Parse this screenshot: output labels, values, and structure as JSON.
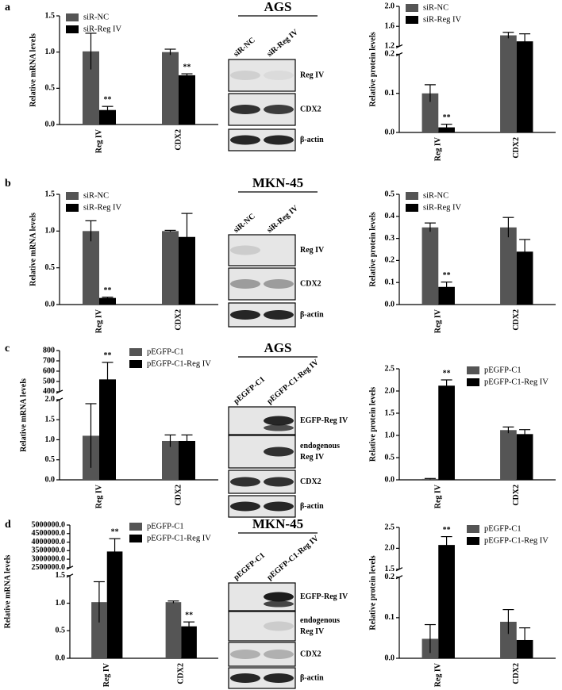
{
  "panels": [
    "a",
    "b",
    "c",
    "d"
  ],
  "blots": [
    {
      "cell_line": "AGS",
      "lanes": [
        "siR-NC",
        "siR-Reg IV"
      ],
      "bands": [
        "Reg IV",
        "CDX2",
        "β-actin"
      ]
    },
    {
      "cell_line": "MKN-45",
      "lanes": [
        "siR-NC",
        "siR-Reg IV"
      ],
      "bands": [
        "Reg IV",
        "CDX2",
        "β-actin"
      ]
    },
    {
      "cell_line": "AGS",
      "lanes": [
        "pEGFP-C1",
        "pEGFP-C1-Reg IV"
      ],
      "bands": [
        "EGFP-Reg IV",
        [
          "endogenous",
          "Reg IV"
        ],
        "CDX2",
        "β-actin"
      ]
    },
    {
      "cell_line": "MKN-45",
      "lanes": [
        "pEGFP-C1",
        "pEGFP-C1-Reg IV"
      ],
      "bands": [
        "EGFP-Reg IV",
        [
          "endogenous",
          "Reg IV"
        ],
        "CDX2",
        "β-actin"
      ]
    }
  ],
  "chart_data": [
    {
      "type": "bar",
      "ylabel": "Relative mRNA levels",
      "categories": [
        "Reg IV",
        "CDX2"
      ],
      "legend": "upper left",
      "series": [
        {
          "name": "siR-NC",
          "color": "#555555",
          "values": [
            1.01,
            1.0
          ],
          "errors": [
            0.25,
            0.04
          ],
          "labels": [
            null,
            null
          ]
        },
        {
          "name": "siR-Reg IV",
          "color": "#000000",
          "values": [
            0.2,
            0.68
          ],
          "errors": [
            0.05,
            0.02
          ],
          "labels": [
            "**",
            "**"
          ]
        }
      ],
      "segments": [
        {
          "ylim": [
            0,
            1.5
          ],
          "yticks": [
            {
              "value": 0,
              "label": "0.0"
            },
            0.5,
            {
              "value": 1,
              "label": "1.0"
            },
            1.5
          ]
        }
      ]
    },
    {
      "type": "bar",
      "ylabel": "Relative protein levels",
      "categories": [
        "Reg IV",
        "CDX2"
      ],
      "legend": "upper left",
      "series": [
        {
          "name": "siR-NC",
          "color": "#555555",
          "values": [
            0.1,
            1.42
          ],
          "errors": [
            0.022,
            0.06
          ],
          "labels": [
            null,
            null
          ]
        },
        {
          "name": "siR-Reg IV",
          "color": "#000000",
          "values": [
            0.013,
            1.3
          ],
          "errors": [
            0.008,
            0.15
          ],
          "labels": [
            "**",
            null
          ]
        }
      ],
      "segments": [
        {
          "ylim": [
            0,
            0.2
          ],
          "yticks": [
            {
              "value": 0,
              "label": "0.0"
            },
            0.1,
            0.2
          ]
        },
        {
          "ylim": [
            1.2,
            2.0
          ],
          "yticks": [
            1.2,
            1.6,
            {
              "value": 2,
              "label": "2.0"
            }
          ]
        }
      ]
    },
    {
      "type": "bar",
      "ylabel": "Relative mRNA levels",
      "categories": [
        "Reg IV",
        "CDX2"
      ],
      "legend": "upper left",
      "series": [
        {
          "name": "siR-NC",
          "color": "#555555",
          "values": [
            1.0,
            1.0
          ],
          "errors": [
            0.14,
            0.01
          ],
          "labels": [
            null,
            null
          ]
        },
        {
          "name": "siR-Reg IV",
          "color": "#000000",
          "values": [
            0.09,
            0.92
          ],
          "errors": [
            0.01,
            0.32
          ],
          "labels": [
            "**",
            null
          ]
        }
      ],
      "segments": [
        {
          "ylim": [
            0,
            1.5
          ],
          "yticks": [
            {
              "value": 0,
              "label": "0.0"
            },
            0.5,
            {
              "value": 1,
              "label": "1.0"
            },
            1.5
          ]
        }
      ]
    },
    {
      "type": "bar",
      "ylabel": "Relative protein levels",
      "categories": [
        "Reg IV",
        "CDX2"
      ],
      "legend": "upper left",
      "series": [
        {
          "name": "siR-NC",
          "color": "#555555",
          "values": [
            0.35,
            0.35
          ],
          "errors": [
            0.02,
            0.045
          ],
          "labels": [
            null,
            null
          ]
        },
        {
          "name": "siR-Reg IV",
          "color": "#000000",
          "values": [
            0.08,
            0.24
          ],
          "errors": [
            0.022,
            0.055
          ],
          "labels": [
            "**",
            null
          ]
        }
      ],
      "segments": [
        {
          "ylim": [
            0,
            0.5
          ],
          "yticks": [
            {
              "value": 0,
              "label": "0.0"
            },
            0.1,
            0.2,
            0.3,
            0.4,
            0.5
          ]
        }
      ]
    },
    {
      "type": "bar",
      "ylabel": "Relative mRNA levels",
      "categories": [
        "Reg IV",
        "CDX2"
      ],
      "legend": "upper right",
      "series": [
        {
          "name": "pEGFP-C1",
          "color": "#555555",
          "values": [
            1.1,
            0.97
          ],
          "errors": [
            0.8,
            0.15
          ],
          "labels": [
            null,
            null
          ]
        },
        {
          "name": "pEGFP-C1-Reg IV",
          "color": "#000000",
          "values": [
            520,
            0.97
          ],
          "errors": [
            165,
            0.15
          ],
          "labels": [
            "**",
            null
          ]
        }
      ],
      "segments": [
        {
          "ylim": [
            0,
            2.0
          ],
          "yticks": [
            {
              "value": 0,
              "label": "0.0"
            },
            0.5,
            {
              "value": 1,
              "label": "1.0"
            },
            1.5,
            {
              "value": 2,
              "label": "2.0"
            }
          ]
        },
        {
          "ylim": [
            400,
            800
          ],
          "yticks": [
            400,
            500,
            600,
            700,
            800
          ]
        }
      ]
    },
    {
      "type": "bar",
      "ylabel": "Relative protein levels",
      "categories": [
        "Reg IV",
        "CDX2"
      ],
      "legend": "upper right",
      "series": [
        {
          "name": "pEGFP-C1",
          "color": "#555555",
          "values": [
            0.02,
            1.12
          ],
          "errors": [
            0.01,
            0.07
          ],
          "labels": [
            null,
            null
          ]
        },
        {
          "name": "pEGFP-C1-Reg IV",
          "color": "#000000",
          "values": [
            2.12,
            1.03
          ],
          "errors": [
            0.13,
            0.1
          ],
          "labels": [
            "**",
            null
          ]
        }
      ],
      "segments": [
        {
          "ylim": [
            0,
            2.5
          ],
          "yticks": [
            {
              "value": 0,
              "label": "0.0"
            },
            0.5,
            {
              "value": 1,
              "label": "1.0"
            },
            1.5,
            {
              "value": 2,
              "label": "2.0"
            },
            2.5
          ]
        }
      ]
    },
    {
      "type": "bar",
      "ylabel": "Relative mRNA levels",
      "categories": [
        "Reg IV",
        "CDX2"
      ],
      "legend": "upper right",
      "series": [
        {
          "name": "pEGFP-C1",
          "color": "#555555",
          "values": [
            1.02,
            1.02
          ],
          "errors": [
            0.37,
            0.02
          ],
          "labels": [
            null,
            null
          ]
        },
        {
          "name": "pEGFP-C1-Reg IV",
          "color": "#000000",
          "values": [
            3450000,
            0.58
          ],
          "errors": [
            750000,
            0.08
          ],
          "labels": [
            "**",
            "**"
          ]
        }
      ],
      "segments": [
        {
          "ylim": [
            0,
            1.5
          ],
          "yticks": [
            {
              "value": 0,
              "label": "0.0"
            },
            0.5,
            {
              "value": 1,
              "label": "1.0"
            },
            1.5
          ]
        },
        {
          "ylim": [
            2500000,
            5000000
          ],
          "yticks": [
            {
              "value": 2500000,
              "label": "2500000.0"
            },
            {
              "value": 3000000,
              "label": "3000000.0"
            },
            {
              "value": 3500000,
              "label": "3500000.0"
            },
            {
              "value": 4000000,
              "label": "4000000.0"
            },
            {
              "value": 4500000,
              "label": "4500000.0"
            },
            {
              "value": 5000000,
              "label": "5000000.0"
            }
          ]
        }
      ]
    },
    {
      "type": "bar",
      "ylabel": "Relative protein levels",
      "categories": [
        "Reg IV",
        "CDX2"
      ],
      "legend": "upper right",
      "series": [
        {
          "name": "pEGFP-C1",
          "color": "#555555",
          "values": [
            0.048,
            0.09
          ],
          "errors": [
            0.035,
            0.03
          ],
          "labels": [
            null,
            null
          ]
        },
        {
          "name": "pEGFP-C1-Reg IV",
          "color": "#000000",
          "values": [
            2.08,
            0.045
          ],
          "errors": [
            0.2,
            0.03
          ],
          "labels": [
            "**",
            null
          ]
        }
      ],
      "segments": [
        {
          "ylim": [
            0,
            0.2
          ],
          "yticks": [
            {
              "value": 0,
              "label": "0.0"
            },
            0.1,
            0.2
          ]
        },
        {
          "ylim": [
            1.5,
            2.5
          ],
          "yticks": [
            1.5,
            {
              "value": 2,
              "label": "2.0"
            },
            2.5
          ]
        }
      ]
    }
  ]
}
